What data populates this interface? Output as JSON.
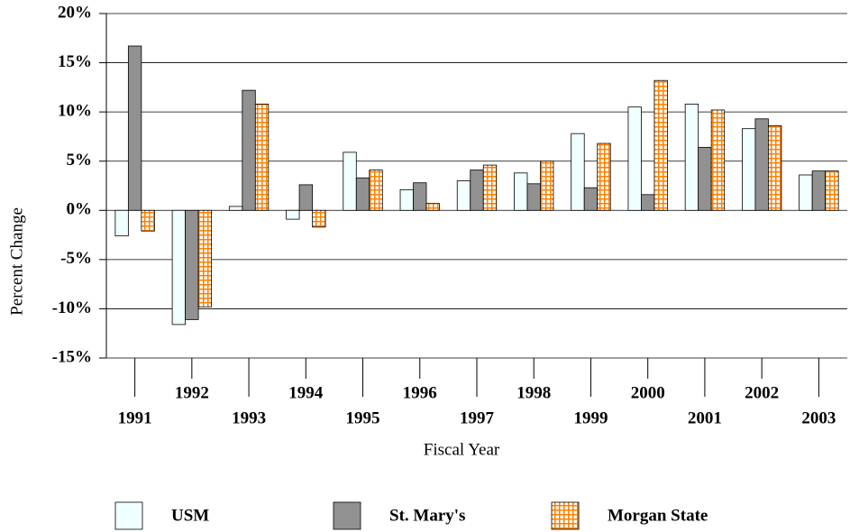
{
  "chart_data": {
    "type": "bar",
    "x_label": "Fiscal Year",
    "y_label": "Percent Change",
    "categories": [
      "1991",
      "1992",
      "1993",
      "1994",
      "1995",
      "1996",
      "1997",
      "1998",
      "1999",
      "2000",
      "2001",
      "2002",
      "2003"
    ],
    "series": [
      {
        "name": "USM",
        "color": "#f0ffff",
        "values": [
          -2.6,
          -11.6,
          0.4,
          -0.9,
          5.9,
          2.1,
          3.0,
          3.8,
          7.8,
          10.5,
          10.8,
          8.3,
          3.6
        ]
      },
      {
        "name": "St. Mary's",
        "color": "#919191",
        "values": [
          16.7,
          -11.1,
          12.2,
          2.6,
          3.3,
          2.8,
          4.1,
          2.7,
          2.3,
          1.6,
          6.4,
          9.3,
          4.0
        ]
      },
      {
        "name": "Morgan State",
        "color": "#ff8000",
        "pattern": "grid",
        "values": [
          -2.1,
          -9.8,
          10.8,
          -1.7,
          4.1,
          0.7,
          4.6,
          5.0,
          6.8,
          13.2,
          10.2,
          8.6,
          4.0
        ]
      }
    ],
    "ylim": [
      -15,
      20
    ],
    "yticks": [
      {
        "value": -15,
        "label": "-15%"
      },
      {
        "value": -10,
        "label": "-10%"
      },
      {
        "value": -5,
        "label": "-5%"
      },
      {
        "value": 0,
        "label": "0%"
      },
      {
        "value": 5,
        "label": "5%"
      },
      {
        "value": 10,
        "label": "10%"
      },
      {
        "value": 15,
        "label": "15%"
      },
      {
        "value": 20,
        "label": "20%"
      }
    ],
    "grid": true,
    "legend": "bottom"
  }
}
